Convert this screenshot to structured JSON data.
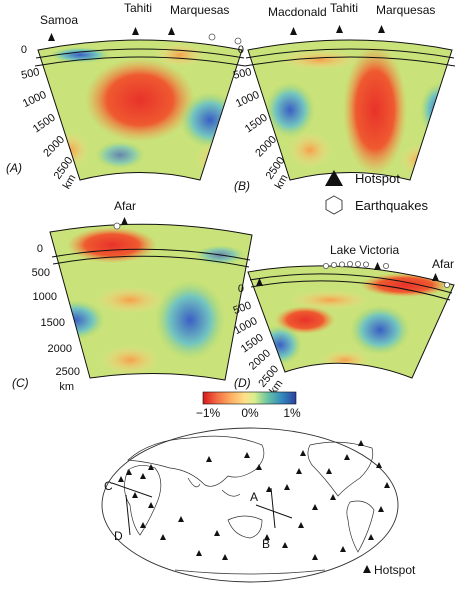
{
  "panel_a": {
    "letter": "(A)",
    "hotspots": [
      "Samoa",
      "Tahiti",
      "Marquesas"
    ],
    "depth_ticks": [
      "0",
      "500",
      "1000",
      "1500",
      "2000",
      "2500"
    ],
    "unit": "km"
  },
  "panel_b": {
    "letter": "(B)",
    "hotspots": [
      "Macdonald",
      "Tahiti",
      "Marquesas"
    ],
    "depth_ticks": [
      "0",
      "500",
      "1000",
      "1500",
      "2000",
      "2500"
    ],
    "unit": "km"
  },
  "panel_c": {
    "letter": "(C)",
    "hotspots": [
      "Afar"
    ],
    "depth_ticks": [
      "0",
      "500",
      "1000",
      "1500",
      "2000",
      "2500"
    ],
    "unit": "km"
  },
  "panel_d": {
    "letter": "(D)",
    "hotspots": [
      "Lake Victoria",
      "Afar"
    ],
    "depth_ticks": [
      "0",
      "500",
      "1000",
      "1500",
      "2000",
      "2500"
    ],
    "unit": "km"
  },
  "legend": {
    "hotspot": "Hotspot",
    "earthquakes": "Earthquakes"
  },
  "colorbar": {
    "ticks": [
      "−1%",
      "0%",
      "1%"
    ],
    "colors": [
      "#d7191c",
      "#f46d43",
      "#fdae61",
      "#fee08b",
      "#ffffbf",
      "#d9ef8b",
      "#a6d96a",
      "#66c2a5",
      "#3288bd",
      "#2c3f9e"
    ]
  },
  "map": {
    "section_labels": [
      "A",
      "B",
      "C",
      "D"
    ],
    "hotspot_legend": "Hotspot"
  },
  "palette": {
    "hot": "#e8322a",
    "warm": "#f5a04a",
    "neutral": "#c9e27a",
    "cool": "#74c6c0",
    "cold": "#3a5fc4"
  }
}
